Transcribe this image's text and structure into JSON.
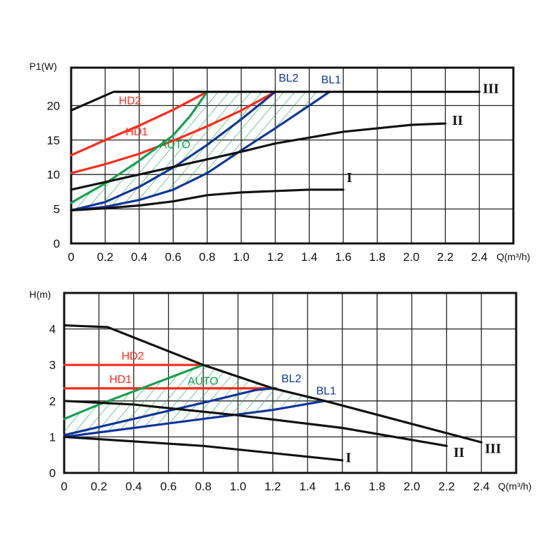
{
  "colors": {
    "black": "#111111",
    "red": "#ff2a1a",
    "green": "#14a050",
    "blue": "#10359a",
    "hatch": "#22b060",
    "grid": "#222222"
  },
  "chart_data": [
    {
      "type": "line",
      "title": "",
      "xlabel": "Q(m³/h)",
      "ylabel": "P1(W)",
      "xlim": [
        0,
        2.6
      ],
      "ylim": [
        0,
        25.5
      ],
      "xticks": [
        "0",
        "0.2",
        "0.4",
        "0.6",
        "0.8",
        "1.0",
        "1.2",
        "1.4",
        "1.6",
        "1.8",
        "2.0",
        "2.2",
        "2.4"
      ],
      "yticks": [
        "0",
        "5",
        "10",
        "15",
        "20"
      ],
      "grid": true,
      "series": [
        {
          "name": "III",
          "color": "black",
          "points": [
            [
              0,
              19.3
            ],
            [
              0.25,
              22
            ],
            [
              2.4,
              22
            ]
          ]
        },
        {
          "name": "II",
          "color": "black",
          "points": [
            [
              0,
              7.8
            ],
            [
              0.4,
              10
            ],
            [
              0.8,
              12.2
            ],
            [
              1.0,
              13.3
            ],
            [
              1.2,
              14.5
            ],
            [
              1.6,
              16.2
            ],
            [
              2.0,
              17.2
            ],
            [
              2.2,
              17.4
            ]
          ]
        },
        {
          "name": "I",
          "color": "black",
          "points": [
            [
              0,
              4.8
            ],
            [
              0.2,
              5.1
            ],
            [
              0.4,
              5.5
            ],
            [
              0.6,
              6.1
            ],
            [
              0.8,
              7
            ],
            [
              1.0,
              7.4
            ],
            [
              1.4,
              7.8
            ],
            [
              1.6,
              7.8
            ]
          ]
        },
        {
          "name": "HD2",
          "color": "red",
          "points": [
            [
              0,
              12.8
            ],
            [
              0.2,
              15
            ],
            [
              0.4,
              17.1
            ],
            [
              0.6,
              19.4
            ],
            [
              0.8,
              22
            ]
          ]
        },
        {
          "name": "HD1",
          "color": "red",
          "points": [
            [
              0,
              10.2
            ],
            [
              0.2,
              11.5
            ],
            [
              0.4,
              13
            ],
            [
              0.6,
              14.9
            ],
            [
              0.8,
              17
            ],
            [
              1.0,
              19.3
            ],
            [
              1.2,
              22
            ]
          ]
        },
        {
          "name": "AUTO",
          "color": "green",
          "points": [
            [
              0,
              5.9
            ],
            [
              0.2,
              8.7
            ],
            [
              0.4,
              12
            ],
            [
              0.6,
              15.7
            ],
            [
              0.7,
              18.5
            ],
            [
              0.8,
              22
            ]
          ]
        },
        {
          "name": "BL2",
          "color": "blue",
          "points": [
            [
              0,
              4.8
            ],
            [
              0.2,
              6
            ],
            [
              0.4,
              8.2
            ],
            [
              0.6,
              11
            ],
            [
              0.8,
              14.3
            ],
            [
              1.0,
              18
            ],
            [
              1.2,
              22
            ]
          ]
        },
        {
          "name": "BL1",
          "color": "blue",
          "points": [
            [
              0,
              4.8
            ],
            [
              0.2,
              5.3
            ],
            [
              0.4,
              6.3
            ],
            [
              0.6,
              7.8
            ],
            [
              0.8,
              10.2
            ],
            [
              1.0,
              13.5
            ],
            [
              1.2,
              16.7
            ],
            [
              1.4,
              20
            ],
            [
              1.52,
              22
            ]
          ]
        }
      ],
      "hatched_region": {
        "upper": "AUTO",
        "lower": "BL1",
        "top_value": 22
      }
    },
    {
      "type": "line",
      "title": "",
      "xlabel": "Q(m³/h)",
      "ylabel": "H(m)",
      "xlim": [
        0,
        2.6
      ],
      "ylim": [
        0,
        5
      ],
      "xticks": [
        "0",
        "0.2",
        "0.4",
        "0.6",
        "0.8",
        "1.0",
        "1.2",
        "1.4",
        "1.6",
        "1.8",
        "2.0",
        "2.2",
        "2.4"
      ],
      "yticks": [
        "0",
        "1",
        "2",
        "3",
        "4"
      ],
      "grid": true,
      "series": [
        {
          "name": "III",
          "color": "black",
          "points": [
            [
              0,
              4.1
            ],
            [
              0.25,
              4.05
            ],
            [
              0.8,
              3.0
            ],
            [
              1.2,
              2.35
            ],
            [
              1.5,
              2.0
            ],
            [
              2.4,
              0.85
            ]
          ]
        },
        {
          "name": "II",
          "color": "black",
          "points": [
            [
              0,
              2
            ],
            [
              0.4,
              1.9
            ],
            [
              1.0,
              1.6
            ],
            [
              1.6,
              1.25
            ],
            [
              2.2,
              0.75
            ]
          ]
        },
        {
          "name": "I",
          "color": "black",
          "points": [
            [
              0,
              1
            ],
            [
              0.8,
              0.75
            ],
            [
              1.6,
              0.35
            ]
          ]
        },
        {
          "name": "HD2",
          "color": "red",
          "points": [
            [
              0,
              3
            ],
            [
              0.8,
              3
            ]
          ]
        },
        {
          "name": "HD1",
          "color": "red",
          "points": [
            [
              0,
              2.35
            ],
            [
              1.22,
              2.35
            ]
          ]
        },
        {
          "name": "AUTO",
          "color": "green",
          "points": [
            [
              0,
              1.5
            ],
            [
              0.2,
              1.9
            ],
            [
              0.8,
              3.0
            ]
          ]
        },
        {
          "name": "BL2",
          "color": "blue",
          "points": [
            [
              0,
              1.05
            ],
            [
              0.4,
              1.5
            ],
            [
              0.8,
              1.95
            ],
            [
              1.1,
              2.3
            ],
            [
              1.2,
              2.35
            ]
          ]
        },
        {
          "name": "BL1",
          "color": "blue",
          "points": [
            [
              0,
              1.0
            ],
            [
              0.4,
              1.25
            ],
            [
              0.8,
              1.5
            ],
            [
              1.2,
              1.75
            ],
            [
              1.5,
              2.0
            ]
          ]
        }
      ],
      "hatched_region": {
        "upper": "AUTO+III",
        "lower": "BL1"
      }
    }
  ]
}
